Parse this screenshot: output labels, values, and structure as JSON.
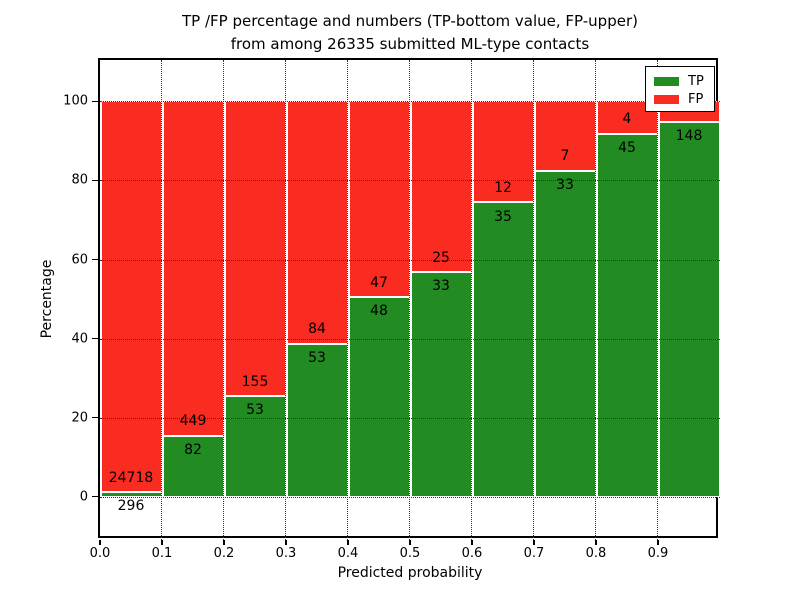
{
  "title": {
    "line1": "TP /FP percentage and numbers (TP-bottom value, FP-upper)",
    "line2": "from among 26335 submitted ML-type contacts"
  },
  "axes": {
    "xlabel": "Predicted probability",
    "ylabel": "Percentage",
    "x_tick_labels": [
      "0.0",
      "0.1",
      "0.2",
      "0.3",
      "0.4",
      "0.5",
      "0.6",
      "0.7",
      "0.8",
      "0.9"
    ],
    "y_tick_values": [
      0,
      20,
      40,
      60,
      80,
      100
    ],
    "y_tick_labels": [
      "0",
      "20",
      "40",
      "60",
      "80",
      "100"
    ]
  },
  "legend": {
    "items": [
      {
        "label": "TP",
        "color": "#228b22"
      },
      {
        "label": "FP",
        "color": "#fa2b20"
      }
    ]
  },
  "colors": {
    "tp": "#228b22",
    "fp": "#fa2b20",
    "grid": "#333333",
    "spine": "#000000",
    "background": "#ffffff"
  },
  "chart_data": {
    "type": "bar",
    "stacked": true,
    "orientation": "vertical",
    "title": "TP /FP percentage and numbers (TP-bottom value, FP-upper) from among 26335 submitted ML-type contacts",
    "xlabel": "Predicted probability",
    "ylabel": "Percentage",
    "total_submitted": 26335,
    "grid": "dotted, drawn above bars",
    "legend_position": "upper right",
    "xlim": [
      0.0,
      1.0
    ],
    "ylim_display": [
      -11,
      110.5
    ],
    "bin_width": 0.1,
    "bin_starts": [
      0.0,
      0.1,
      0.2,
      0.3,
      0.4,
      0.5,
      0.6,
      0.7,
      0.8,
      0.9
    ],
    "categories": [
      "0.0-0.1",
      "0.1-0.2",
      "0.2-0.3",
      "0.3-0.4",
      "0.4-0.5",
      "0.5-0.6",
      "0.6-0.7",
      "0.7-0.8",
      "0.8-0.9",
      "0.9-1.0"
    ],
    "series": [
      {
        "name": "TP",
        "position": "bottom",
        "counts": [
          296,
          82,
          53,
          53,
          48,
          33,
          35,
          33,
          45,
          148
        ],
        "pct": [
          1.18,
          15.44,
          25.48,
          38.69,
          50.53,
          56.9,
          74.47,
          82.5,
          91.84,
          94.87
        ]
      },
      {
        "name": "FP",
        "position": "top",
        "counts": [
          24718,
          449,
          155,
          84,
          47,
          25,
          12,
          7,
          4,
          null
        ],
        "pct": [
          98.82,
          84.56,
          74.52,
          61.31,
          49.47,
          43.1,
          25.53,
          17.5,
          8.16,
          5.13
        ],
        "note_last_label": "FP count label of last bar is hidden behind the legend box"
      }
    ]
  }
}
